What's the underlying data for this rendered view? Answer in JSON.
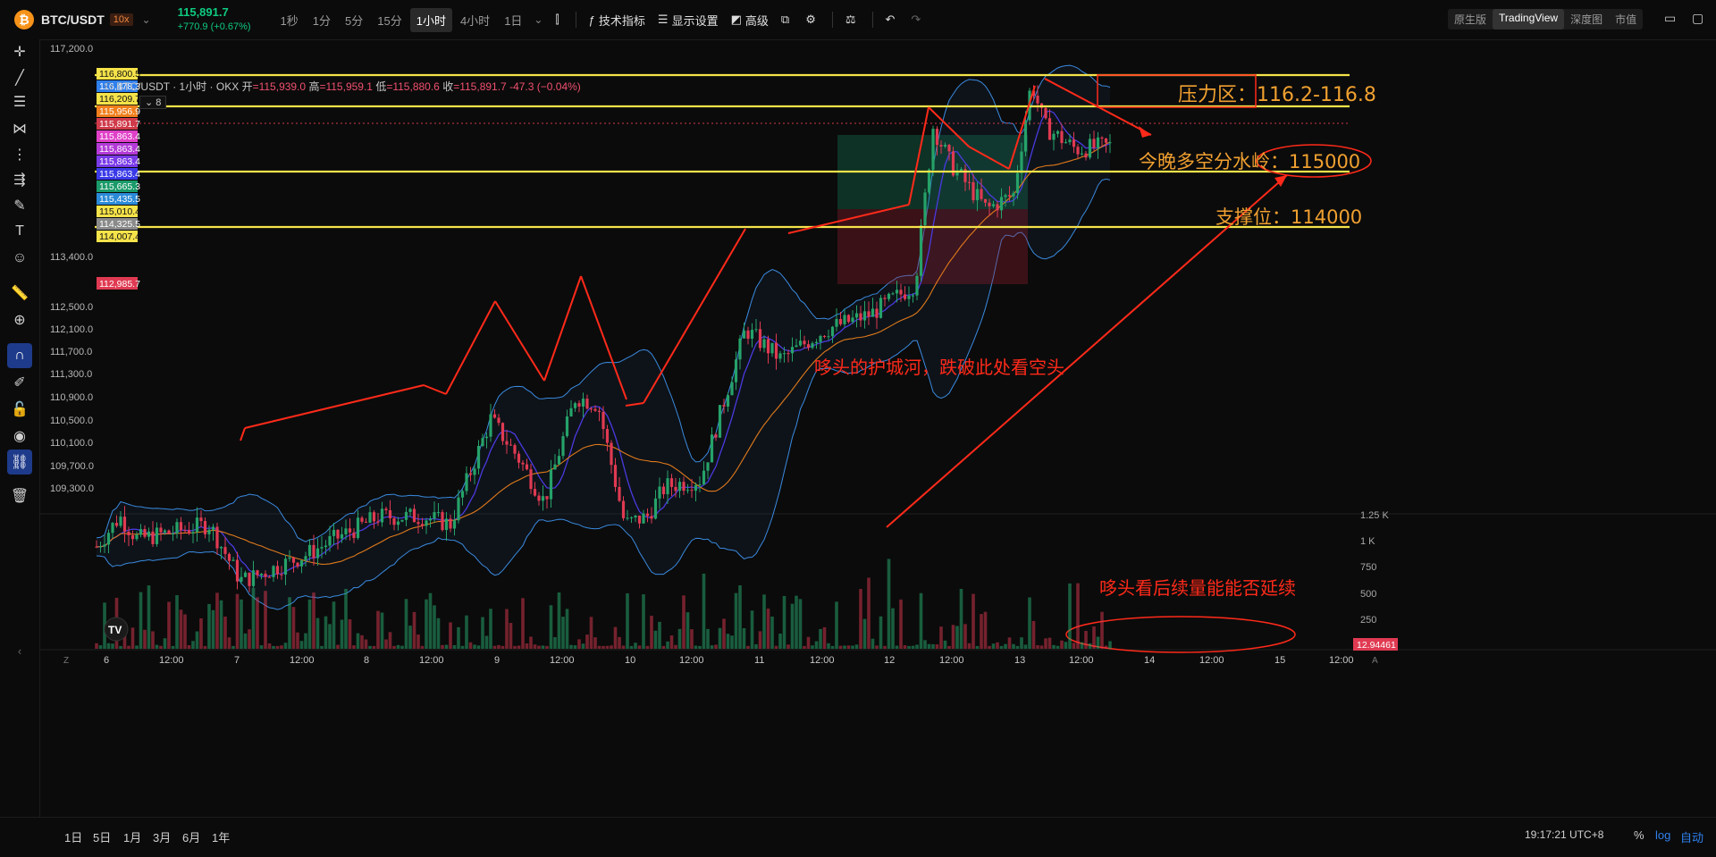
{
  "symbol": {
    "name": "BTC/USDT",
    "leverage": "10x",
    "price": "115,891.7",
    "change": "+770.9 (+0.67%)"
  },
  "timeframes": [
    {
      "label": "1秒",
      "active": false
    },
    {
      "label": "1分",
      "active": false
    },
    {
      "label": "5分",
      "active": false
    },
    {
      "label": "15分",
      "active": false
    },
    {
      "label": "1小时",
      "active": true
    },
    {
      "label": "4小时",
      "active": false
    },
    {
      "label": "1日",
      "active": false
    }
  ],
  "toolbar": {
    "indicators": "技术指标",
    "display": "显示设置",
    "advanced": "高级"
  },
  "view_switch": [
    {
      "label": "原生版",
      "active": false
    },
    {
      "label": "TradingView",
      "active": true
    },
    {
      "label": "深度图",
      "active": false
    },
    {
      "label": "市值",
      "active": false
    }
  ],
  "legend": {
    "title": "BTC/USDT · 1小时 · OKX",
    "open_label": "开",
    "open": "=115,939.0",
    "high_label": "高",
    "high": "=115,959.1",
    "low_label": "低",
    "low": "=115,880.6",
    "close_label": "收",
    "close": "=115,891.7",
    "change": "-47.3 (−0.04%)",
    "indicator_count": "8"
  },
  "price_axis": [
    "117,200.0",
    "113,400.0",
    "112,500.0",
    "112,100.0",
    "111,700.0",
    "111,300.0",
    "110,900.0",
    "110,500.0",
    "110,100.0",
    "109,700.0",
    "109,300.0"
  ],
  "price_tags": [
    {
      "v": "116,800.5",
      "bg": "#f5e34a",
      "fg": "#111"
    },
    {
      "v": "116,478.3",
      "bg": "#2f80ed",
      "fg": "#fff"
    },
    {
      "v": "116,209.7",
      "bg": "#f5e34a",
      "fg": "#111"
    },
    {
      "v": "115,956.9",
      "bg": "#f07f1c",
      "fg": "#fff"
    },
    {
      "v": "115,891.7",
      "bg": "#d03a4a",
      "fg": "#fff"
    },
    {
      "v": "115,863.4",
      "bg": "#e040c8",
      "fg": "#fff"
    },
    {
      "v": "115,863.4",
      "bg": "#b43ad8",
      "fg": "#fff"
    },
    {
      "v": "115,863.4",
      "bg": "#7a3ae8",
      "fg": "#fff"
    },
    {
      "v": "115,863.4",
      "bg": "#3a3ae8",
      "fg": "#fff"
    },
    {
      "v": "115,665.3",
      "bg": "#1a9a6a",
      "fg": "#fff"
    },
    {
      "v": "115,435.5",
      "bg": "#2a8ad8",
      "fg": "#fff"
    },
    {
      "v": "115,010.4",
      "bg": "#f5e34a",
      "fg": "#111"
    },
    {
      "v": "114,325.5",
      "bg": "#8a8a8a",
      "fg": "#fff"
    },
    {
      "v": "114,007.4",
      "bg": "#f5e34a",
      "fg": "#111"
    }
  ],
  "low_tag": "112,985.7",
  "vol_axis": [
    "1.25 K",
    "1 K",
    "750",
    "500",
    "250"
  ],
  "vol_tag": "12.94461",
  "time_axis": [
    "6",
    "12:00",
    "7",
    "12:00",
    "8",
    "12:00",
    "9",
    "12:00",
    "10",
    "12:00",
    "11",
    "12:00",
    "12",
    "12:00",
    "13",
    "12:00",
    "14",
    "12:00",
    "15",
    "12:00"
  ],
  "annotations": {
    "pressure": "压力区：116.2-116.8",
    "pivot": "今晚多空分水岭：115000",
    "support": "支撑位：114000",
    "moat": "哆头的护城河，跌破此处看空头",
    "volume": "哆头看后续量能能否延续"
  },
  "ranges": [
    "1日",
    "5日",
    "1月",
    "3月",
    "6月",
    "1年"
  ],
  "clock": "19:17:21 UTC+8",
  "scale_opts": [
    "%",
    "log",
    "自动"
  ],
  "colors": {
    "up": "#26a269",
    "down": "#e03a52",
    "yellow": "#f5e34a",
    "red_anno": "#ff2a1a",
    "orange_anno": "#f0a030",
    "bb": "#3a8ae0",
    "ma_fast": "#4a3ae0",
    "ma_slow": "#e07a1c"
  }
}
